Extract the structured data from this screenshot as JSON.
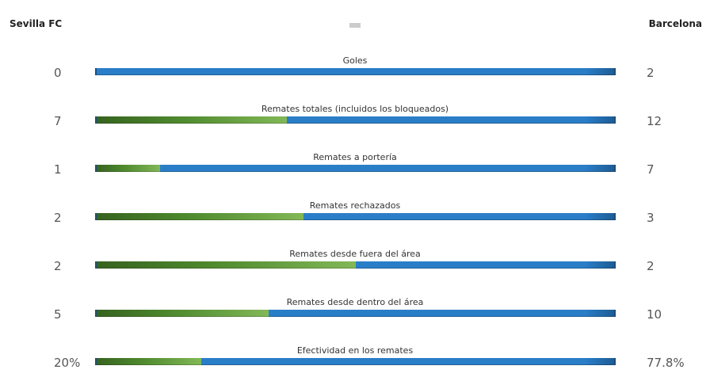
{
  "teams": {
    "home": "Sevilla FC",
    "away": "Barcelona"
  },
  "colors": {
    "home": "#6aa443",
    "away": "#2a7ec8"
  },
  "stats": [
    {
      "label": "Goles",
      "home": "0",
      "away": "2",
      "home_share": 0.0
    },
    {
      "label": "Remates totales (incluidos los bloqueados)",
      "home": "7",
      "away": "12",
      "home_share": 0.368
    },
    {
      "label": "Remates a portería",
      "home": "1",
      "away": "7",
      "home_share": 0.125
    },
    {
      "label": "Remates rechazados",
      "home": "2",
      "away": "3",
      "home_share": 0.4
    },
    {
      "label": "Remates desde fuera del área",
      "home": "2",
      "away": "2",
      "home_share": 0.5
    },
    {
      "label": "Remates desde dentro del área",
      "home": "5",
      "away": "10",
      "home_share": 0.333
    },
    {
      "label": "Efectividad en los remates",
      "home": "20%",
      "away": "77.8%",
      "home_share": 0.204
    }
  ]
}
